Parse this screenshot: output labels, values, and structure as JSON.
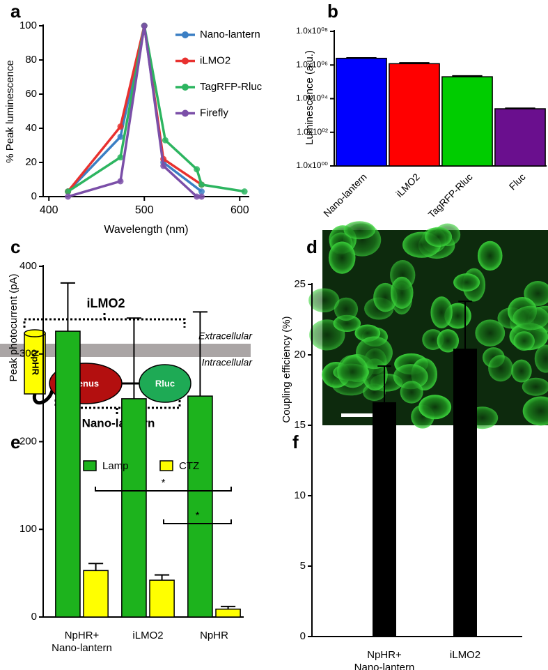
{
  "panel_labels": [
    "a",
    "b",
    "c",
    "d",
    "e",
    "f"
  ],
  "chart_data": [
    {
      "type": "line",
      "xlabel": "Wavelength (nm)",
      "ylabel": "% Peak luminescence",
      "xlim": [
        394,
        610
      ],
      "xticks": [
        400,
        500,
        600
      ],
      "ylim": [
        0,
        100
      ],
      "yticks": [
        0,
        20,
        40,
        60,
        80,
        100
      ],
      "legend": "top-right",
      "series": [
        {
          "name": "Nano-lantern",
          "color": "#3b7fc4",
          "x": [
            420,
            475,
            500,
            520,
            560
          ],
          "values": [
            3,
            35,
            100,
            20,
            3
          ]
        },
        {
          "name": "iLMO2",
          "color": "#e8312f",
          "x": [
            420,
            475,
            500,
            520,
            560
          ],
          "values": [
            3,
            41,
            100,
            22,
            7
          ]
        },
        {
          "name": "TagRFP-Rluc",
          "color": "#2db560",
          "x": [
            420,
            475,
            500,
            522,
            555,
            560,
            605
          ],
          "values": [
            3,
            23,
            100,
            33,
            16,
            7,
            3
          ]
        },
        {
          "name": "Firefly",
          "color": "#7b4fa8",
          "x": [
            420,
            475,
            500,
            520,
            555,
            560
          ],
          "values": [
            0,
            9,
            100,
            18,
            0,
            0
          ]
        }
      ]
    },
    {
      "type": "bar",
      "ylabel": "Luminescence  (a.u.)",
      "log": true,
      "ylim": [
        1,
        100000000
      ],
      "yticks": [
        {
          "value": 1,
          "label": "1.0x10⁰⁰"
        },
        {
          "value": 100,
          "label": "1.0x10⁰²"
        },
        {
          "value": 10000,
          "label": "1.0x10⁰⁴"
        },
        {
          "value": 1000000,
          "label": "1.0x10⁰⁶"
        },
        {
          "value": 100000000,
          "label": "1.0x10⁰⁸"
        }
      ],
      "categories": [
        "Nano-lantern",
        "iLMO2",
        "TagRFP-Rluc",
        "Fluc"
      ],
      "values": [
        2500000,
        1200000,
        200000,
        2500
      ],
      "errors": [
        150000,
        150000,
        25000,
        200
      ],
      "colors": [
        "#0000ff",
        "#ff0000",
        "#00cc00",
        "#6a0f8e"
      ]
    },
    {
      "type": "bar",
      "ylabel": "Peak  photocurrent (pA)",
      "legend": "top",
      "ylim": [
        0,
        400
      ],
      "yticks": [
        0,
        100,
        200,
        300,
        400
      ],
      "categories": [
        "NpHR+\nNano-lantern",
        "iLMO2",
        "NpHR"
      ],
      "series": [
        {
          "name": "Lamp",
          "color": "#1db31d",
          "values": [
            326,
            249,
            252
          ],
          "errors": [
            55,
            92,
            96
          ]
        },
        {
          "name": "CTZ",
          "color": "#ffff00",
          "values": [
            53,
            42,
            9
          ],
          "errors": [
            8,
            6,
            3
          ]
        }
      ],
      "annotations": [
        {
          "text": "*"
        },
        {
          "text": "*"
        }
      ]
    },
    {
      "type": "bar",
      "ylabel": "Coupling efficiency (%)",
      "ylim": [
        0,
        25
      ],
      "yticks": [
        0,
        5,
        10,
        15,
        20,
        25
      ],
      "categories": [
        "NpHR+\nNano-lantern",
        "iLMO2"
      ],
      "values": [
        16.6,
        20.4
      ],
      "errors": [
        2.6,
        3.4
      ],
      "color": "#000000"
    }
  ],
  "diagram": {
    "labels": {
      "complex": "iLMO2",
      "outside": "Extracellular",
      "inside": "Intracellular",
      "channel": "NpHR",
      "donor": "Venus",
      "enzyme": "Rluc",
      "fusion": "Nano-lantern"
    }
  }
}
